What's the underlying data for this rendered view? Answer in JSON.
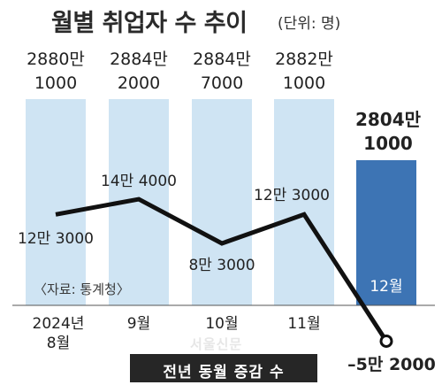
{
  "title": "월별 취업자 수 추이",
  "unit": "(단위: 명)",
  "source": "〈자료: 통계청〉",
  "watermark": "서울신문",
  "legend_label": "전년 동월 증감 수",
  "colors": {
    "bar": "#cfe4f3",
    "bar_highlight": "#3d74b4",
    "line": "#111111",
    "marker_fill": "#ffffff"
  },
  "chart_data": [
    {
      "type": "bar",
      "categories": [
        "2024년 8월",
        "9월",
        "10월",
        "11월",
        "12월"
      ],
      "category_labels": [
        [
          "2024년",
          "8월"
        ],
        [
          "9월"
        ],
        [
          "10월"
        ],
        [
          "11월"
        ],
        [
          "12월"
        ]
      ],
      "values": [
        28801000,
        28842000,
        28847000,
        28821000,
        28041000
      ],
      "value_labels": [
        [
          "2880만",
          "1000"
        ],
        [
          "2884만",
          "2000"
        ],
        [
          "2884만",
          "7000"
        ],
        [
          "2882만",
          "1000"
        ],
        [
          "2804만",
          "1000"
        ]
      ],
      "highlight_index": 4
    },
    {
      "type": "line",
      "categories": [
        "2024년 8월",
        "9월",
        "10월",
        "11월",
        "12월"
      ],
      "values": [
        123000,
        144000,
        83000,
        123000,
        -52000
      ],
      "labels": [
        "12만 3000",
        "14만 4000",
        "8만 3000",
        "12만 3000",
        "–5만 2000"
      ],
      "series": [
        {
          "name": "전년 동월 증감 수"
        }
      ]
    }
  ]
}
